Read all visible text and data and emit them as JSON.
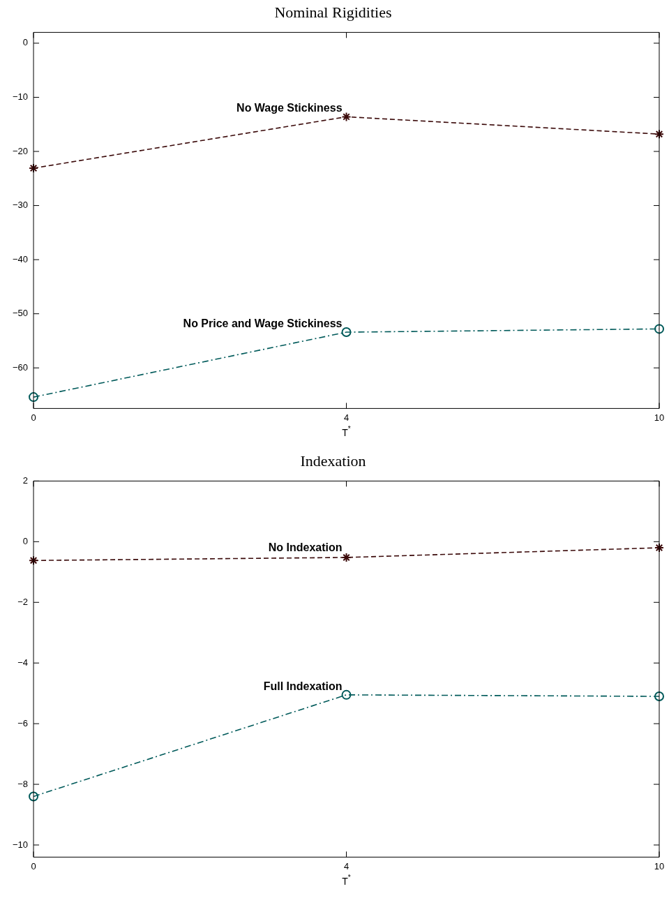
{
  "chart_data": [
    {
      "type": "line",
      "title": "Nominal Rigidities",
      "xlabel": "T$^{*}$",
      "categories": [
        "0",
        "4",
        "10"
      ],
      "ylim": [
        -67.5,
        2
      ],
      "yticks": [
        0,
        -10,
        -20,
        -30,
        -40,
        -50,
        -60
      ],
      "grid": false,
      "legend": false,
      "series": [
        {
          "name": "No Wage Stickiness",
          "color": "#3b0a0a",
          "marker": "cross",
          "line_style": "dashed",
          "values": [
            -23.1,
            -13.6,
            -16.8
          ]
        },
        {
          "name": "No Price and Wage Stickiness",
          "color": "#005a5a",
          "marker": "circle",
          "line_style": "dashdot",
          "values": [
            -65.4,
            -53.4,
            -52.8
          ]
        }
      ]
    },
    {
      "type": "line",
      "title": "Indexation",
      "xlabel": "T$^{*}$",
      "categories": [
        "0",
        "4",
        "10"
      ],
      "ylim": [
        -10.4,
        2
      ],
      "yticks": [
        2,
        0,
        -2,
        -4,
        -6,
        -8,
        -10
      ],
      "grid": false,
      "legend": false,
      "series": [
        {
          "name": "No Indexation",
          "color": "#3b0a0a",
          "marker": "cross",
          "line_style": "dashed",
          "values": [
            -0.62,
            -0.52,
            -0.2
          ]
        },
        {
          "name": "Full Indexation",
          "color": "#005a5a",
          "marker": "circle",
          "line_style": "dashdot",
          "values": [
            -8.4,
            -5.05,
            -5.1
          ]
        }
      ]
    }
  ]
}
